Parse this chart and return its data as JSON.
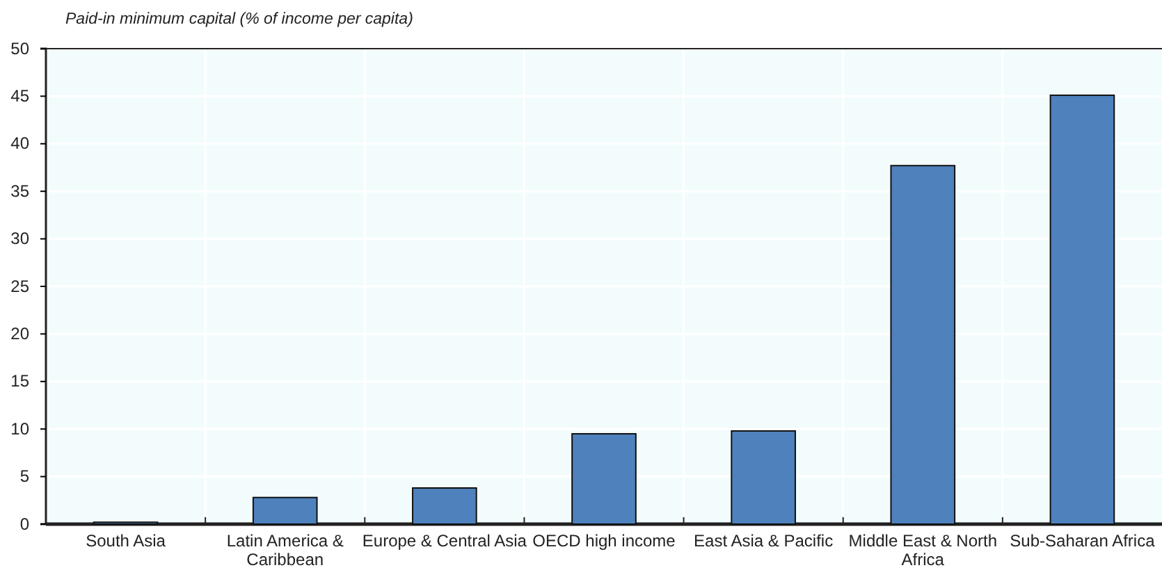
{
  "chart_data": {
    "type": "bar",
    "title": "Paid-in minimum capital (% of income per capita)",
    "categories": [
      "South Asia",
      "Latin America & Caribbean",
      "Europe & Central Asia",
      "OECD high income",
      "East Asia & Pacific",
      "Middle East & North Africa",
      "Sub-Saharan Africa"
    ],
    "values": [
      0.2,
      2.8,
      3.8,
      9.5,
      9.8,
      37.7,
      45.1
    ],
    "color": "#4f81bd",
    "ylim": [
      0,
      50
    ],
    "yticks": [
      0,
      5,
      10,
      15,
      20,
      25,
      30,
      35,
      40,
      45,
      50
    ],
    "grid": true
  }
}
